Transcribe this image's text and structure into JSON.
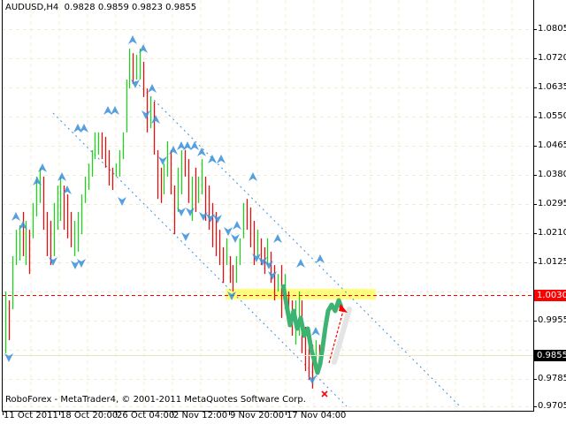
{
  "header": {
    "symbol": "AUDUSD,H4",
    "ohlc": "0.9828 0.9859 0.9823 0.9855"
  },
  "footer": {
    "copyright": "RoboForex - MetaTrader4, © 2001-2011 MetaQuotes Software Corp."
  },
  "colors": {
    "background": "#ffffff",
    "grid": "#f0ecd0",
    "bull_bar": "#22d022",
    "bear_bar": "#e01010",
    "level_line": "#ff0000",
    "level_zone": "#ffff66",
    "channel": "#3a8fd9",
    "forecast": "#3cb371",
    "fractal": "#3a8fd9"
  },
  "chart_data": {
    "type": "ohlc-bars",
    "symbol": "AUDUSD",
    "timeframe": "H4",
    "ylim": [
      0.9705,
      1.0805
    ],
    "y_ticks": [
      "1.0805",
      "1.0720",
      "1.0635",
      "1.0550",
      "1.0465",
      "1.0380",
      "1.0295",
      "1.0210",
      "1.0125",
      "0.9955",
      "0.9785",
      "0.9705"
    ],
    "x_ticks": [
      "11 Oct 2011",
      "18 Oct 20:00",
      "26 Oct 04:00",
      "2 Nov 12:00",
      "9 Nov 20:00",
      "17 Nov 04:00"
    ],
    "grid": true,
    "level": {
      "value": "1.0030",
      "style": "red dashed with yellow zone"
    },
    "bid": {
      "value": "0.9855"
    },
    "bars_high_low_dir": [
      [
        1.004,
        0.986,
        "u"
      ],
      [
        1.0014,
        0.9898,
        "d"
      ],
      [
        1.0143,
        0.9988,
        "u"
      ],
      [
        1.022,
        1.0117,
        "u"
      ],
      [
        1.0233,
        1.013,
        "u"
      ],
      [
        1.0272,
        1.0143,
        "d"
      ],
      [
        1.0246,
        1.0117,
        "u"
      ],
      [
        1.022,
        1.0091,
        "d"
      ],
      [
        1.0298,
        1.0195,
        "u"
      ],
      [
        1.0375,
        1.0259,
        "u"
      ],
      [
        1.0401,
        1.0298,
        "u"
      ],
      [
        1.0375,
        1.022,
        "d"
      ],
      [
        1.0272,
        1.0143,
        "d"
      ],
      [
        1.0246,
        1.0117,
        "d"
      ],
      [
        1.0298,
        1.0143,
        "u"
      ],
      [
        1.0349,
        1.022,
        "u"
      ],
      [
        1.0375,
        1.0246,
        "u"
      ],
      [
        1.0349,
        1.022,
        "d"
      ],
      [
        1.0323,
        1.0195,
        "d"
      ],
      [
        1.0272,
        1.0169,
        "d"
      ],
      [
        1.0246,
        1.0143,
        "u"
      ],
      [
        1.0272,
        1.0156,
        "u"
      ],
      [
        1.0323,
        1.0207,
        "u"
      ],
      [
        1.0375,
        1.0298,
        "u"
      ],
      [
        1.0413,
        1.0336,
        "u"
      ],
      [
        1.0452,
        1.0375,
        "u"
      ],
      [
        1.0504,
        1.0426,
        "u"
      ],
      [
        1.0504,
        1.0439,
        "u"
      ],
      [
        1.0504,
        1.0426,
        "d"
      ],
      [
        1.0491,
        1.0401,
        "d"
      ],
      [
        1.0452,
        1.0349,
        "d"
      ],
      [
        1.0401,
        1.0336,
        "d"
      ],
      [
        1.0413,
        1.0375,
        "u"
      ],
      [
        1.0452,
        1.0375,
        "u"
      ],
      [
        1.0504,
        1.0426,
        "u"
      ],
      [
        1.0658,
        1.0504,
        "u"
      ],
      [
        1.0748,
        1.0632,
        "u"
      ],
      [
        1.0735,
        1.0645,
        "d"
      ],
      [
        1.073,
        1.0658,
        "u"
      ],
      [
        1.0748,
        1.0658,
        "u"
      ],
      [
        1.071,
        1.0607,
        "d"
      ],
      [
        1.0632,
        1.0504,
        "d"
      ],
      [
        1.0607,
        1.0516,
        "u"
      ],
      [
        1.0594,
        1.0439,
        "d"
      ],
      [
        1.0452,
        1.031,
        "d"
      ],
      [
        1.0401,
        1.0298,
        "d"
      ],
      [
        1.0413,
        1.0323,
        "u"
      ],
      [
        1.0478,
        1.0375,
        "u"
      ],
      [
        1.0452,
        1.0323,
        "d"
      ],
      [
        1.0349,
        1.0207,
        "d"
      ],
      [
        1.0401,
        1.0272,
        "u"
      ],
      [
        1.0452,
        1.0323,
        "u"
      ],
      [
        1.0452,
        1.0375,
        "d"
      ],
      [
        1.0426,
        1.0298,
        "d"
      ],
      [
        1.0375,
        1.0246,
        "u"
      ],
      [
        1.0401,
        1.0272,
        "d"
      ],
      [
        1.0375,
        1.0298,
        "u"
      ],
      [
        1.0426,
        1.0323,
        "u"
      ],
      [
        1.0375,
        1.0246,
        "d"
      ],
      [
        1.0349,
        1.022,
        "d"
      ],
      [
        1.0298,
        1.0169,
        "d"
      ],
      [
        1.0272,
        1.0143,
        "d"
      ],
      [
        1.022,
        1.0117,
        "d"
      ],
      [
        1.0169,
        1.0065,
        "d"
      ],
      [
        1.0195,
        1.0117,
        "u"
      ],
      [
        1.0143,
        1.0065,
        "d"
      ],
      [
        1.0117,
        1.004,
        "d"
      ],
      [
        1.0143,
        1.0065,
        "u"
      ],
      [
        1.0195,
        1.0117,
        "u"
      ],
      [
        1.0298,
        1.0195,
        "u"
      ],
      [
        1.031,
        1.022,
        "d"
      ],
      [
        1.0285,
        1.0169,
        "d"
      ],
      [
        1.0246,
        1.0117,
        "d"
      ],
      [
        1.022,
        1.0143,
        "u"
      ],
      [
        1.0195,
        1.0117,
        "d"
      ],
      [
        1.0169,
        1.0091,
        "d"
      ],
      [
        1.0195,
        1.0117,
        "u"
      ],
      [
        1.0156,
        1.0065,
        "d"
      ],
      [
        1.0117,
        1.0014,
        "d"
      ],
      [
        1.0091,
        1.004,
        "u"
      ],
      [
        1.0117,
        0.9963,
        "d"
      ],
      [
        1.0091,
        0.9988,
        "u"
      ],
      [
        1.004,
        0.9937,
        "d"
      ],
      [
        1.0014,
        0.9911,
        "d"
      ],
      [
        1.0014,
        0.9885,
        "u"
      ],
      [
        1.004,
        0.9911,
        "u"
      ],
      [
        1.0014,
        0.986,
        "d"
      ],
      [
        0.9937,
        0.9808,
        "d"
      ],
      [
        0.9911,
        0.9782,
        "d"
      ],
      [
        0.9885,
        0.9757,
        "d"
      ],
      [
        0.9898,
        0.9808,
        "u"
      ],
      [
        0.9885,
        0.9834,
        "d"
      ]
    ]
  }
}
